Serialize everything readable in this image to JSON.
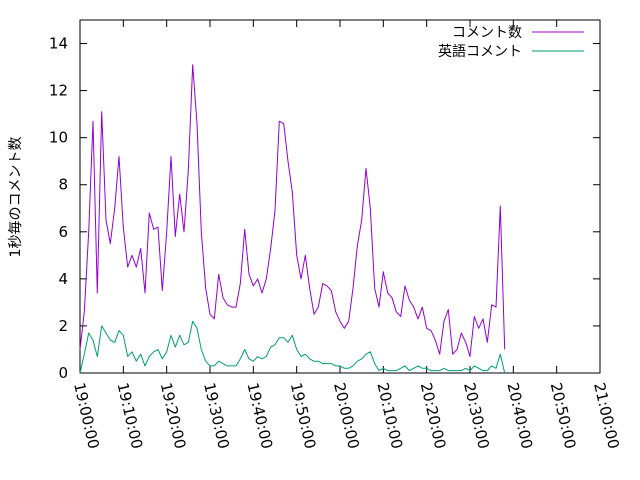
{
  "chart_data": {
    "type": "line",
    "ylabel": "1秒毎のコメント数",
    "xlabel": "",
    "title": "",
    "ylim": [
      0,
      15
    ],
    "xlim": [
      "19:00:00",
      "21:00:00"
    ],
    "y_ticks": [
      0,
      2,
      4,
      6,
      8,
      10,
      12,
      14
    ],
    "x_ticks": [
      "19:00:00",
      "19:10:00",
      "19:20:00",
      "19:30:00",
      "19:40:00",
      "19:50:00",
      "20:00:00",
      "20:10:00",
      "20:20:00",
      "20:30:00",
      "20:40:00",
      "20:50:00",
      "21:00:00"
    ],
    "grid": false,
    "legend_position": "top-right",
    "series": [
      {
        "name": "コメント数",
        "color": "#9400d3",
        "points": [
          [
            "19:00:00",
            1.0
          ],
          [
            "19:01:00",
            2.6
          ],
          [
            "19:02:00",
            6.0
          ],
          [
            "19:03:00",
            10.7
          ],
          [
            "19:04:00",
            3.4
          ],
          [
            "19:05:00",
            11.1
          ],
          [
            "19:06:00",
            6.5
          ],
          [
            "19:07:00",
            5.5
          ],
          [
            "19:08:00",
            7.0
          ],
          [
            "19:09:00",
            9.2
          ],
          [
            "19:10:00",
            6.2
          ],
          [
            "19:11:00",
            4.5
          ],
          [
            "19:12:00",
            5.0
          ],
          [
            "19:13:00",
            4.5
          ],
          [
            "19:14:00",
            5.3
          ],
          [
            "19:15:00",
            3.4
          ],
          [
            "19:16:00",
            6.8
          ],
          [
            "19:17:00",
            6.1
          ],
          [
            "19:18:00",
            6.2
          ],
          [
            "19:19:00",
            3.5
          ],
          [
            "19:20:00",
            6.0
          ],
          [
            "19:21:00",
            9.2
          ],
          [
            "19:22:00",
            5.8
          ],
          [
            "19:23:00",
            7.6
          ],
          [
            "19:24:00",
            6.0
          ],
          [
            "19:25:00",
            8.6
          ],
          [
            "19:26:00",
            13.1
          ],
          [
            "19:27:00",
            10.6
          ],
          [
            "19:28:00",
            6.0
          ],
          [
            "19:29:00",
            3.6
          ],
          [
            "19:30:00",
            2.5
          ],
          [
            "19:31:00",
            2.3
          ],
          [
            "19:32:00",
            4.2
          ],
          [
            "19:33:00",
            3.2
          ],
          [
            "19:34:00",
            2.9
          ],
          [
            "19:35:00",
            2.8
          ],
          [
            "19:36:00",
            2.8
          ],
          [
            "19:37:00",
            3.8
          ],
          [
            "19:38:00",
            6.1
          ],
          [
            "19:39:00",
            4.2
          ],
          [
            "19:40:00",
            3.7
          ],
          [
            "19:41:00",
            4.0
          ],
          [
            "19:42:00",
            3.4
          ],
          [
            "19:43:00",
            4.0
          ],
          [
            "19:44:00",
            5.3
          ],
          [
            "19:45:00",
            6.9
          ],
          [
            "19:46:00",
            10.7
          ],
          [
            "19:47:00",
            10.6
          ],
          [
            "19:48:00",
            9.0
          ],
          [
            "19:49:00",
            7.7
          ],
          [
            "19:50:00",
            5.0
          ],
          [
            "19:51:00",
            4.0
          ],
          [
            "19:52:00",
            5.0
          ],
          [
            "19:53:00",
            3.6
          ],
          [
            "19:54:00",
            2.5
          ],
          [
            "19:55:00",
            2.8
          ],
          [
            "19:56:00",
            3.8
          ],
          [
            "19:57:00",
            3.7
          ],
          [
            "19:58:00",
            3.5
          ],
          [
            "19:59:00",
            2.6
          ],
          [
            "20:00:00",
            2.2
          ],
          [
            "20:01:00",
            1.9
          ],
          [
            "20:02:00",
            2.2
          ],
          [
            "20:03:00",
            3.6
          ],
          [
            "20:04:00",
            5.4
          ],
          [
            "20:05:00",
            6.5
          ],
          [
            "20:06:00",
            8.7
          ],
          [
            "20:07:00",
            7.0
          ],
          [
            "20:08:00",
            3.6
          ],
          [
            "20:09:00",
            2.8
          ],
          [
            "20:10:00",
            4.3
          ],
          [
            "20:11:00",
            3.4
          ],
          [
            "20:12:00",
            3.2
          ],
          [
            "20:13:00",
            2.6
          ],
          [
            "20:14:00",
            2.4
          ],
          [
            "20:15:00",
            3.7
          ],
          [
            "20:16:00",
            3.1
          ],
          [
            "20:17:00",
            2.8
          ],
          [
            "20:18:00",
            2.3
          ],
          [
            "20:19:00",
            2.8
          ],
          [
            "20:20:00",
            1.9
          ],
          [
            "20:21:00",
            1.8
          ],
          [
            "20:22:00",
            1.4
          ],
          [
            "20:23:00",
            0.8
          ],
          [
            "20:24:00",
            2.2
          ],
          [
            "20:25:00",
            2.7
          ],
          [
            "20:26:00",
            0.8
          ],
          [
            "20:27:00",
            1.0
          ],
          [
            "20:28:00",
            1.7
          ],
          [
            "20:29:00",
            1.3
          ],
          [
            "20:30:00",
            0.7
          ],
          [
            "20:31:00",
            2.4
          ],
          [
            "20:32:00",
            1.9
          ],
          [
            "20:33:00",
            2.3
          ],
          [
            "20:34:00",
            1.3
          ],
          [
            "20:35:00",
            2.9
          ],
          [
            "20:36:00",
            2.8
          ],
          [
            "20:37:00",
            7.1
          ],
          [
            "20:38:00",
            1.0
          ]
        ]
      },
      {
        "name": "英語コメント",
        "color": "#009e73",
        "points": [
          [
            "19:00:00",
            0.0
          ],
          [
            "19:01:00",
            0.8
          ],
          [
            "19:02:00",
            1.7
          ],
          [
            "19:03:00",
            1.4
          ],
          [
            "19:04:00",
            0.7
          ],
          [
            "19:05:00",
            2.0
          ],
          [
            "19:06:00",
            1.7
          ],
          [
            "19:07:00",
            1.4
          ],
          [
            "19:08:00",
            1.3
          ],
          [
            "19:09:00",
            1.8
          ],
          [
            "19:10:00",
            1.6
          ],
          [
            "19:11:00",
            0.7
          ],
          [
            "19:12:00",
            0.9
          ],
          [
            "19:13:00",
            0.5
          ],
          [
            "19:14:00",
            0.8
          ],
          [
            "19:15:00",
            0.3
          ],
          [
            "19:16:00",
            0.7
          ],
          [
            "19:17:00",
            0.9
          ],
          [
            "19:18:00",
            1.0
          ],
          [
            "19:19:00",
            0.6
          ],
          [
            "19:20:00",
            0.9
          ],
          [
            "19:21:00",
            1.6
          ],
          [
            "19:22:00",
            1.1
          ],
          [
            "19:23:00",
            1.6
          ],
          [
            "19:24:00",
            1.2
          ],
          [
            "19:25:00",
            1.3
          ],
          [
            "19:26:00",
            2.2
          ],
          [
            "19:27:00",
            1.9
          ],
          [
            "19:28:00",
            1.0
          ],
          [
            "19:29:00",
            0.5
          ],
          [
            "19:30:00",
            0.3
          ],
          [
            "19:31:00",
            0.3
          ],
          [
            "19:32:00",
            0.5
          ],
          [
            "19:33:00",
            0.4
          ],
          [
            "19:34:00",
            0.3
          ],
          [
            "19:35:00",
            0.3
          ],
          [
            "19:36:00",
            0.3
          ],
          [
            "19:37:00",
            0.6
          ],
          [
            "19:38:00",
            1.0
          ],
          [
            "19:39:00",
            0.6
          ],
          [
            "19:40:00",
            0.5
          ],
          [
            "19:41:00",
            0.7
          ],
          [
            "19:42:00",
            0.6
          ],
          [
            "19:43:00",
            0.7
          ],
          [
            "19:44:00",
            1.1
          ],
          [
            "19:45:00",
            1.2
          ],
          [
            "19:46:00",
            1.5
          ],
          [
            "19:47:00",
            1.5
          ],
          [
            "19:48:00",
            1.3
          ],
          [
            "19:49:00",
            1.6
          ],
          [
            "19:50:00",
            1.0
          ],
          [
            "19:51:00",
            0.7
          ],
          [
            "19:52:00",
            0.8
          ],
          [
            "19:53:00",
            0.6
          ],
          [
            "19:54:00",
            0.5
          ],
          [
            "19:55:00",
            0.5
          ],
          [
            "19:56:00",
            0.4
          ],
          [
            "19:57:00",
            0.4
          ],
          [
            "19:58:00",
            0.4
          ],
          [
            "19:59:00",
            0.3
          ],
          [
            "20:00:00",
            0.3
          ],
          [
            "20:01:00",
            0.2
          ],
          [
            "20:02:00",
            0.2
          ],
          [
            "20:03:00",
            0.3
          ],
          [
            "20:04:00",
            0.5
          ],
          [
            "20:05:00",
            0.6
          ],
          [
            "20:06:00",
            0.8
          ],
          [
            "20:07:00",
            0.9
          ],
          [
            "20:08:00",
            0.4
          ],
          [
            "20:09:00",
            0.1
          ],
          [
            "20:10:00",
            0.2
          ],
          [
            "20:11:00",
            0.1
          ],
          [
            "20:12:00",
            0.1
          ],
          [
            "20:13:00",
            0.1
          ],
          [
            "20:14:00",
            0.2
          ],
          [
            "20:15:00",
            0.3
          ],
          [
            "20:16:00",
            0.1
          ],
          [
            "20:17:00",
            0.2
          ],
          [
            "20:18:00",
            0.3
          ],
          [
            "20:19:00",
            0.2
          ],
          [
            "20:20:00",
            0.2
          ],
          [
            "20:21:00",
            0.1
          ],
          [
            "20:22:00",
            0.1
          ],
          [
            "20:23:00",
            0.1
          ],
          [
            "20:24:00",
            0.2
          ],
          [
            "20:25:00",
            0.1
          ],
          [
            "20:26:00",
            0.1
          ],
          [
            "20:27:00",
            0.1
          ],
          [
            "20:28:00",
            0.1
          ],
          [
            "20:29:00",
            0.2
          ],
          [
            "20:30:00",
            0.1
          ],
          [
            "20:31:00",
            0.3
          ],
          [
            "20:32:00",
            0.2
          ],
          [
            "20:33:00",
            0.1
          ],
          [
            "20:34:00",
            0.1
          ],
          [
            "20:35:00",
            0.3
          ],
          [
            "20:36:00",
            0.2
          ],
          [
            "20:37:00",
            0.8
          ],
          [
            "20:38:00",
            0.0
          ]
        ]
      }
    ]
  }
}
